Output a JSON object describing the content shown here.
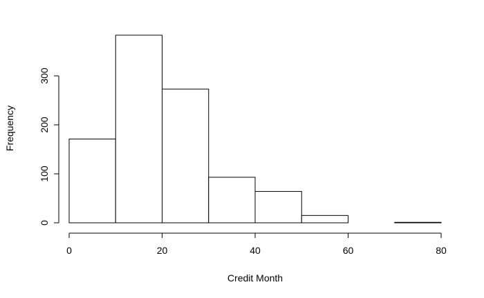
{
  "chart_data": {
    "type": "bar",
    "title": "",
    "xlabel": "Credit Month",
    "ylabel": "Frequency",
    "bins": [
      {
        "start": 0,
        "end": 10,
        "count": 171
      },
      {
        "start": 10,
        "end": 20,
        "count": 383
      },
      {
        "start": 20,
        "end": 30,
        "count": 273
      },
      {
        "start": 30,
        "end": 40,
        "count": 93
      },
      {
        "start": 40,
        "end": 50,
        "count": 64
      },
      {
        "start": 50,
        "end": 60,
        "count": 15
      },
      {
        "start": 60,
        "end": 70,
        "count": 0
      },
      {
        "start": 70,
        "end": 80,
        "count": 1
      }
    ],
    "xlim": [
      0,
      80
    ],
    "ylim": [
      0,
      383
    ],
    "x_ticks": [
      0,
      20,
      40,
      60,
      80
    ],
    "y_ticks": [
      0,
      100,
      200,
      300
    ],
    "grid": false,
    "legend": "none",
    "colors": {
      "bar_fill": "#ffffff",
      "bar_stroke": "#000000",
      "axis": "#000000"
    }
  }
}
